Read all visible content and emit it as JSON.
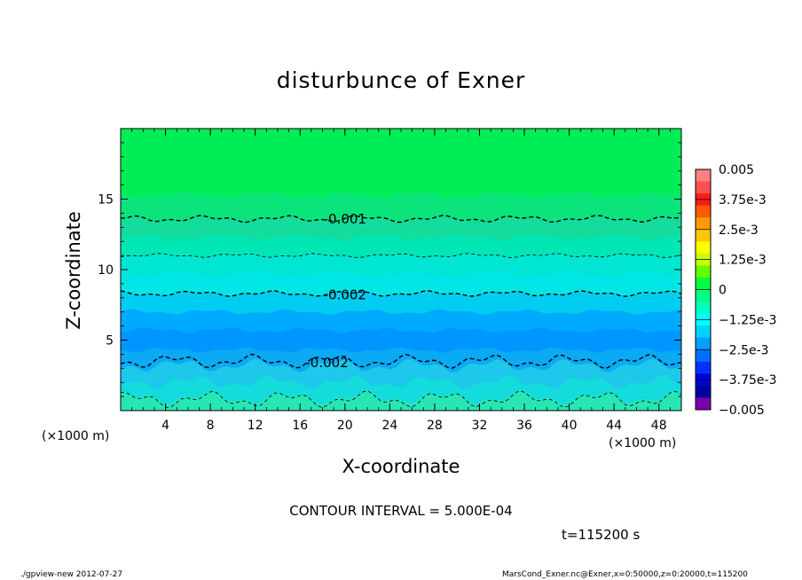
{
  "chart_data": {
    "type": "contour",
    "title": "disturbunce of Exner",
    "xlabel": "X-coordinate",
    "ylabel": "Z-coordinate",
    "x_unit": "(×1000 m)",
    "xlim": [
      0,
      50
    ],
    "ylim": [
      0,
      20
    ],
    "x_ticks": [
      4,
      8,
      12,
      16,
      20,
      24,
      28,
      32,
      36,
      40,
      44,
      48
    ],
    "y_ticks": [
      5,
      10,
      15
    ],
    "colorbar": {
      "labels": [
        "0.005",
        "3.75e-3",
        "2.5e-3",
        "1.25e-3",
        "0",
        "−1.25e-3",
        "−2.5e-3",
        "−3.75e-3",
        "−0.005"
      ],
      "levels": [
        0.005,
        0.00375,
        0.0025,
        0.00125,
        0,
        -0.00125,
        -0.0025,
        -0.00375,
        -0.005
      ],
      "colors": [
        "#ff8080",
        "#ff5050",
        "#ff1a1a",
        "#ff5a00",
        "#ff9a00",
        "#ffc800",
        "#ffff00",
        "#c8ff00",
        "#64ff00",
        "#00ff3c",
        "#00ff80",
        "#00ffc0",
        "#00ffff",
        "#00d2ff",
        "#00a0ff",
        "#006eff",
        "#0032ff",
        "#0000dc",
        "#0000a0",
        "#7a00aa"
      ]
    },
    "contour_labels": [
      {
        "text": "-0.001",
        "x": 20,
        "z": 13.6
      },
      {
        "text": "-0.002",
        "x": 20,
        "z": 8.2
      },
      {
        "text": "-0.002",
        "x": 18.4,
        "z": 3.4
      }
    ],
    "bands": [
      {
        "z_top": 20,
        "color": "#00ee55"
      },
      {
        "z_top": 15.3,
        "color": "#0ae47a"
      },
      {
        "z_top": 13.6,
        "color": "#14dc9c"
      },
      {
        "z_top": 12.3,
        "color": "#00e6b4"
      },
      {
        "z_top": 11.0,
        "color": "#00e6d2"
      },
      {
        "z_top": 9.7,
        "color": "#00e6e6"
      },
      {
        "z_top": 8.3,
        "color": "#00cdf0"
      },
      {
        "z_top": 7.0,
        "color": "#00aaff"
      },
      {
        "z_top": 5.7,
        "color": "#0096ff"
      },
      {
        "z_top": 4.3,
        "color": "#0aaaf5"
      },
      {
        "z_top": 3.2,
        "color": "#1ec8ea"
      },
      {
        "z_top": 2.0,
        "color": "#14dcdc"
      },
      {
        "z_top": 0.9,
        "color": "#28e6b4"
      }
    ],
    "contours": [
      {
        "z": 13.6,
        "amp": 0.25,
        "style": "thick"
      },
      {
        "z": 11.0,
        "amp": 0.15,
        "style": "thin"
      },
      {
        "z": 8.3,
        "amp": 0.2,
        "style": "thick"
      },
      {
        "z": 3.5,
        "amp": 0.5,
        "style": "thick"
      },
      {
        "z": 0.8,
        "amp": 0.6,
        "style": "thin"
      }
    ]
  },
  "annotations": {
    "contour_interval": "CONTOUR INTERVAL = 5.000E-04",
    "time": "t=115200 s"
  },
  "footer": {
    "left": "./gpview-new  2012-07-27",
    "right": "MarsCond_Exner.nc@Exner,x=0:50000,z=0:20000,t=115200"
  }
}
